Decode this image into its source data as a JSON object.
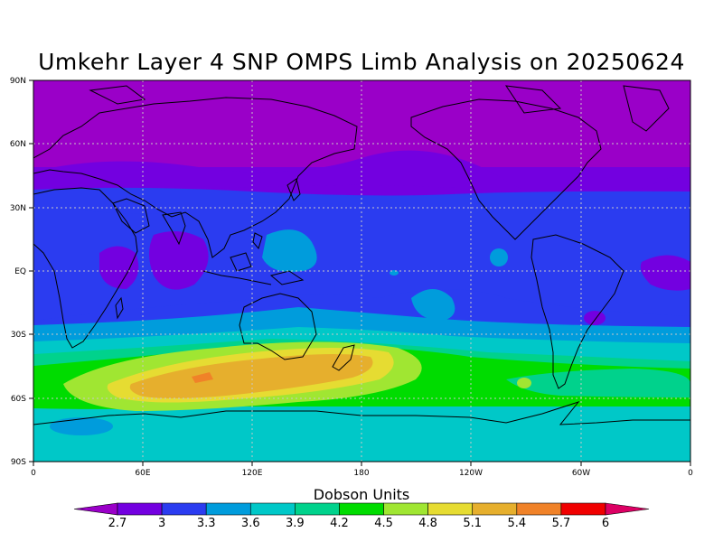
{
  "title": "Umkehr Layer 4 SNP OMPS Limb Analysis on 20250624",
  "colorbar": {
    "title": "Dobson Units",
    "labels": [
      "2.7",
      "3",
      "3.3",
      "3.6",
      "3.9",
      "4.2",
      "4.5",
      "4.8",
      "5.1",
      "5.4",
      "5.7",
      "6"
    ],
    "colors": [
      "#9a00c8",
      "#7300e0",
      "#2b3cf0",
      "#009cdc",
      "#00c8c8",
      "#00d28c",
      "#00dc00",
      "#a0e632",
      "#e6dc32",
      "#e6af2d",
      "#f08228",
      "#f00000",
      "#dc0064"
    ]
  },
  "axes": {
    "lat_labels": [
      "90N",
      "60N",
      "30N",
      "EQ",
      "30S",
      "60S",
      "90S"
    ],
    "lon_labels": [
      "0",
      "60E",
      "120E",
      "180",
      "120W",
      "60W",
      "0"
    ]
  }
}
